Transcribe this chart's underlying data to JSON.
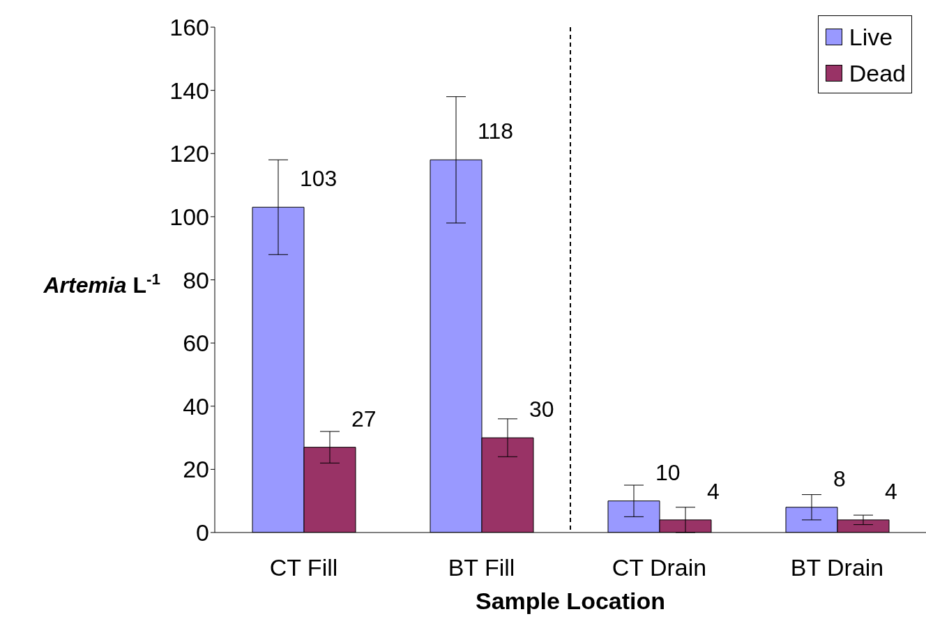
{
  "chart_data": {
    "type": "bar",
    "xlabel": "Sample Location",
    "ylabel": "Artemia L$^{-1}$",
    "categories": [
      "CT Fill",
      "BT Fill",
      "CT Drain",
      "BT Drain"
    ],
    "series": [
      {
        "name": "Live",
        "color": "#9999ff",
        "values": [
          103,
          118,
          10,
          8
        ],
        "errors": [
          15,
          20,
          5,
          4
        ]
      },
      {
        "name": "Dead",
        "color": "#993366",
        "values": [
          27,
          30,
          4,
          4
        ],
        "errors": [
          5,
          6,
          4,
          1.5
        ]
      }
    ],
    "ylim": [
      0,
      160
    ],
    "yticks": [
      0,
      20,
      40,
      60,
      80,
      100,
      120,
      140,
      160
    ],
    "grid": false,
    "legend": "top right",
    "data_labels": true
  }
}
